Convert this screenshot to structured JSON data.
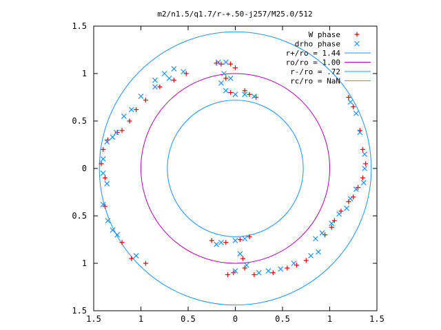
{
  "chart_data": {
    "type": "scatter",
    "title": "m2/n1.5/q1.7/r-+.50-j257/M25.0/512",
    "xlabel": "",
    "ylabel": "",
    "xlim": [
      -1.5,
      1.5
    ],
    "ylim": [
      -1.5,
      1.5
    ],
    "x_ticks": [
      "1.5",
      "1",
      "0.5",
      "0",
      "0.5",
      "1",
      "1.5"
    ],
    "y_ticks": [
      "1.5",
      "1",
      "0.5",
      "0",
      "0.5",
      "1",
      "1.5"
    ],
    "grid": false,
    "legend_position": "top-right",
    "series": [
      {
        "name": "W phase",
        "marker": "plus",
        "color": "#e00000",
        "points": [
          [
            -0.15,
            1.1
          ],
          [
            -0.2,
            1.11
          ],
          [
            -0.05,
            1.1
          ],
          [
            0.0,
            1.06
          ],
          [
            -0.1,
            0.95
          ],
          [
            -0.05,
            0.8
          ],
          [
            0.1,
            0.82
          ],
          [
            0.15,
            0.78
          ],
          [
            0.22,
            0.75
          ],
          [
            -0.52,
            1.0
          ],
          [
            -0.65,
            0.93
          ],
          [
            -0.8,
            0.86
          ],
          [
            -0.95,
            0.72
          ],
          [
            -1.05,
            0.62
          ],
          [
            -1.12,
            0.5
          ],
          [
            -1.2,
            0.4
          ],
          [
            -1.25,
            0.38
          ],
          [
            -1.35,
            0.3
          ],
          [
            -1.4,
            0.2
          ],
          [
            -1.42,
            0.05
          ],
          [
            -1.38,
            -0.1
          ],
          [
            1.2,
            0.75
          ],
          [
            1.25,
            0.65
          ],
          [
            1.32,
            0.4
          ],
          [
            1.35,
            0.2
          ],
          [
            1.38,
            0.05
          ],
          [
            1.35,
            -0.1
          ],
          [
            1.3,
            -0.2
          ],
          [
            1.25,
            -0.3
          ],
          [
            1.2,
            -0.35
          ],
          [
            1.12,
            -0.45
          ],
          [
            1.05,
            -0.55
          ],
          [
            1.02,
            -0.62
          ],
          [
            0.95,
            -0.7
          ],
          [
            0.15,
            -0.72
          ],
          [
            0.05,
            -0.75
          ],
          [
            -0.1,
            -0.78
          ],
          [
            -0.25,
            -0.76
          ],
          [
            0.08,
            -0.95
          ],
          [
            0.1,
            -1.05
          ],
          [
            -0.02,
            -1.1
          ],
          [
            -0.08,
            -1.12
          ],
          [
            0.2,
            -1.12
          ],
          [
            0.4,
            -1.1
          ],
          [
            0.55,
            -1.05
          ],
          [
            0.65,
            -1.02
          ],
          [
            0.75,
            -0.97
          ],
          [
            -1.2,
            -0.78
          ],
          [
            -1.1,
            -0.95
          ],
          [
            -0.95,
            -1.0
          ],
          [
            -1.38,
            -0.4
          ]
        ]
      },
      {
        "name": "drho phase",
        "marker": "cross",
        "color": "#1e90ff",
        "points": [
          [
            -0.18,
            1.12
          ],
          [
            -0.1,
            1.12
          ],
          [
            -0.15,
            0.9
          ],
          [
            -0.1,
            0.82
          ],
          [
            0.0,
            0.78
          ],
          [
            0.1,
            0.78
          ],
          [
            0.2,
            0.76
          ],
          [
            -0.12,
            1.0
          ],
          [
            -0.05,
            0.95
          ],
          [
            -0.55,
            1.02
          ],
          [
            -0.7,
            0.95
          ],
          [
            -0.85,
            0.86
          ],
          [
            -1.0,
            0.76
          ],
          [
            -1.1,
            0.62
          ],
          [
            -1.18,
            0.55
          ],
          [
            -1.26,
            0.38
          ],
          [
            -1.3,
            0.33
          ],
          [
            -1.36,
            0.28
          ],
          [
            -1.4,
            0.1
          ],
          [
            -1.4,
            -0.05
          ],
          [
            -1.36,
            -0.16
          ],
          [
            1.22,
            0.7
          ],
          [
            1.28,
            0.58
          ],
          [
            1.32,
            0.38
          ],
          [
            1.37,
            0.15
          ],
          [
            1.37,
            0.0
          ],
          [
            1.36,
            -0.15
          ],
          [
            1.28,
            -0.22
          ],
          [
            1.22,
            -0.32
          ],
          [
            1.18,
            -0.42
          ],
          [
            1.1,
            -0.48
          ],
          [
            1.02,
            -0.58
          ],
          [
            0.92,
            -0.68
          ],
          [
            0.85,
            -0.74
          ],
          [
            0.1,
            -0.74
          ],
          [
            0.0,
            -0.76
          ],
          [
            -0.15,
            -0.78
          ],
          [
            -0.2,
            -0.8
          ],
          [
            0.05,
            -0.9
          ],
          [
            0.12,
            -1.02
          ],
          [
            0.0,
            -1.08
          ],
          [
            0.25,
            -1.1
          ],
          [
            0.35,
            -1.08
          ],
          [
            0.48,
            -1.06
          ],
          [
            0.62,
            -1.0
          ],
          [
            0.8,
            -0.92
          ],
          [
            0.88,
            -0.88
          ],
          [
            -1.3,
            -0.65
          ],
          [
            -1.25,
            -0.7
          ],
          [
            -1.05,
            -0.92
          ],
          [
            -1.4,
            -0.38
          ],
          [
            -1.35,
            -0.55
          ],
          [
            -0.65,
            1.05
          ],
          [
            -0.75,
            1.0
          ],
          [
            -0.85,
            0.93
          ]
        ]
      }
    ],
    "circles": [
      {
        "name": "r+/ro = 1.44",
        "radius": 1.44,
        "color": "#1e90ff"
      },
      {
        "name": "ro/ro = 1.00",
        "radius": 1.0,
        "color": "#b000b0"
      },
      {
        "name": "r-/ro = .72",
        "radius": 0.72,
        "color": "#1e90ff"
      },
      {
        "name": "rc/ro = NaN",
        "radius": null,
        "color": "#00c8c8"
      }
    ]
  }
}
